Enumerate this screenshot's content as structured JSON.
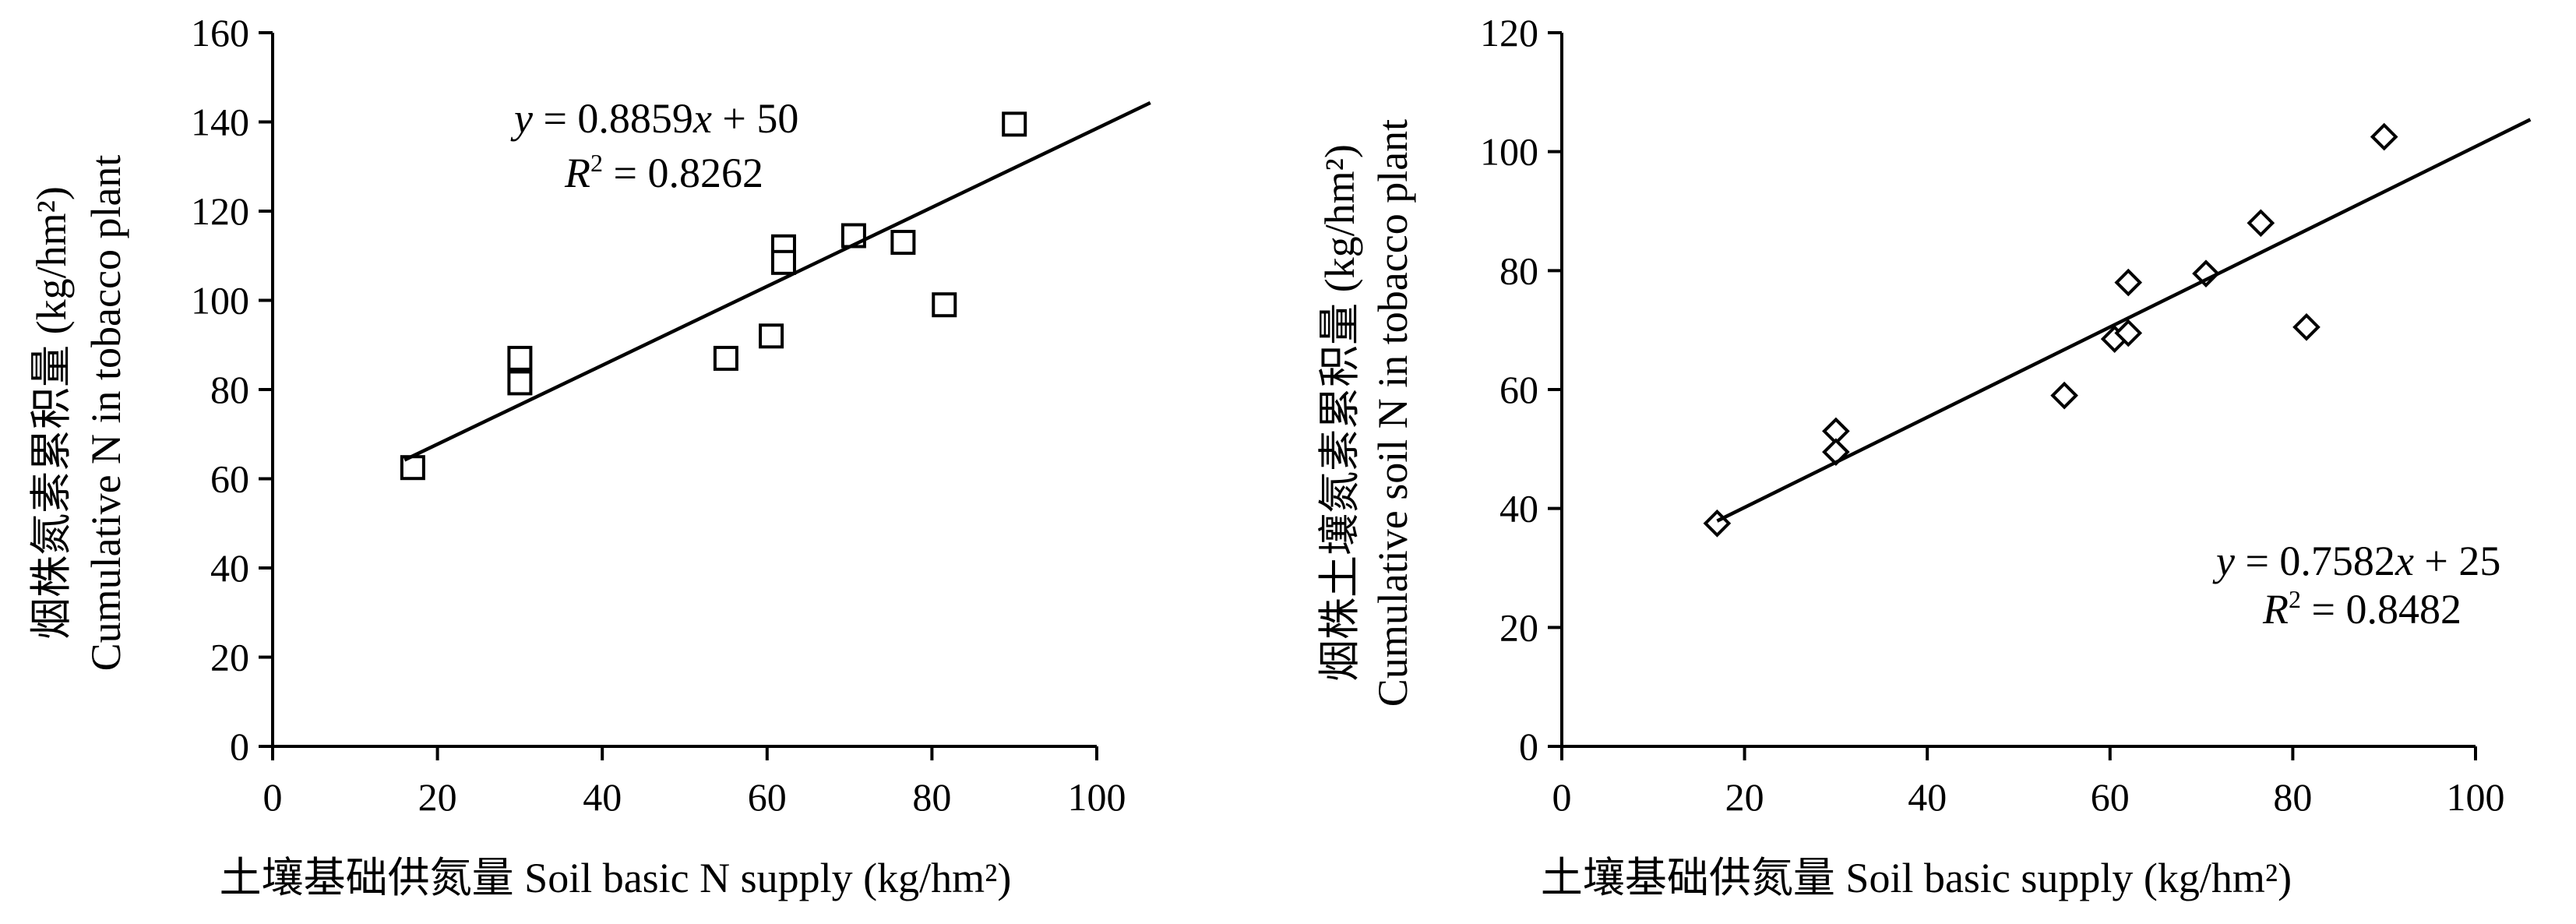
{
  "chart_data": [
    {
      "type": "scatter",
      "marker": "square",
      "xlabel": "土壤基础供氮量 Soil basic N supply (kg/hm²)",
      "ylabel_lines": [
        "烟株氮素累积量 (kg/hm²)",
        "Cumulative N in tobacco plant"
      ],
      "xlim": [
        0,
        100
      ],
      "ylim": [
        0,
        160
      ],
      "xticks": [
        "0",
        "20",
        "40",
        "60",
        "80",
        "100"
      ],
      "yticks": [
        "0",
        "20",
        "40",
        "60",
        "80",
        "100",
        "120",
        "140",
        "160"
      ],
      "grid": false,
      "points": [
        {
          "x": 17,
          "y": 62.5
        },
        {
          "x": 30,
          "y": 87
        },
        {
          "x": 30,
          "y": 81.5
        },
        {
          "x": 55,
          "y": 87
        },
        {
          "x": 60.5,
          "y": 92
        },
        {
          "x": 62,
          "y": 112
        },
        {
          "x": 62,
          "y": 108.5
        },
        {
          "x": 70.5,
          "y": 114.5
        },
        {
          "x": 76.5,
          "y": 113
        },
        {
          "x": 81.5,
          "y": 99
        },
        {
          "x": 90,
          "y": 139.5
        }
      ],
      "trendline": {
        "x0": 16,
        "y0": 64.2,
        "x1": 106.5,
        "y1": 144.3
      },
      "equation": {
        "y_var": "y",
        "rhs_lead": " = 0.8859",
        "x_var": "x",
        "rhs_tail": " + 50"
      },
      "r_squared": {
        "var": "R",
        "sup": "2",
        "value": " = 0.8262"
      }
    },
    {
      "type": "scatter",
      "marker": "diamond",
      "xlabel": "土壤基础供氮量 Soil basic  supply (kg/hm²)",
      "ylabel_lines": [
        "烟株土壤氮素累积量 (kg/hm²)",
        "Cumulative soil N in tobacco plant"
      ],
      "xlim": [
        0,
        100
      ],
      "ylim": [
        0,
        120
      ],
      "xticks": [
        "0",
        "20",
        "40",
        "60",
        "80",
        "100"
      ],
      "yticks": [
        "0",
        "20",
        "40",
        "60",
        "80",
        "100",
        "120"
      ],
      "grid": false,
      "points": [
        {
          "x": 17,
          "y": 37.5
        },
        {
          "x": 30,
          "y": 53
        },
        {
          "x": 30,
          "y": 49.5
        },
        {
          "x": 55,
          "y": 59
        },
        {
          "x": 60.5,
          "y": 68.5
        },
        {
          "x": 62,
          "y": 78
        },
        {
          "x": 62,
          "y": 69.5
        },
        {
          "x": 70.5,
          "y": 79.5
        },
        {
          "x": 76.5,
          "y": 88
        },
        {
          "x": 81.5,
          "y": 70.5
        },
        {
          "x": 90,
          "y": 102.5
        }
      ],
      "trendline": {
        "x0": 17,
        "y0": 37.9,
        "x1": 106,
        "y1": 105.4
      },
      "equation": {
        "y_var": "y",
        "rhs_lead": " = 0.7582",
        "x_var": "x",
        "rhs_tail": " + 25"
      },
      "r_squared": {
        "var": "R",
        "sup": "2",
        "value": " = 0.8482"
      }
    }
  ]
}
